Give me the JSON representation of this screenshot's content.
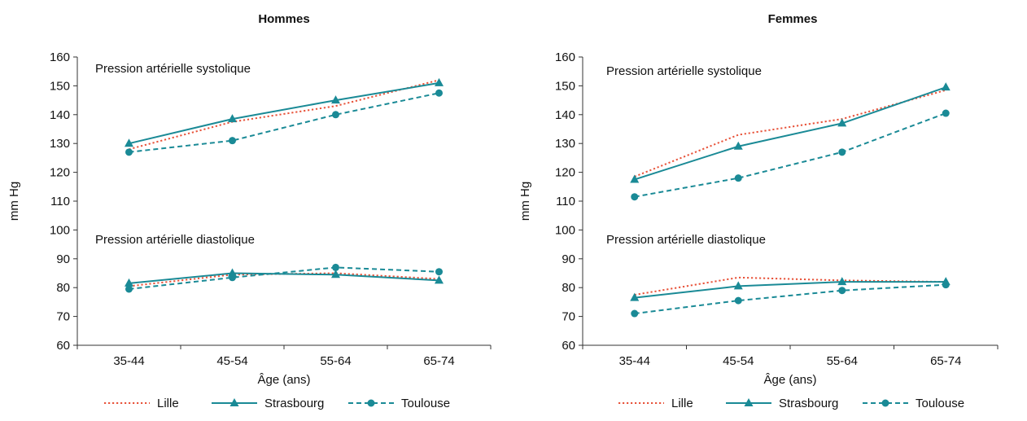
{
  "chart_data": [
    {
      "type": "line",
      "title": "Hommes",
      "xlabel": "Âge (ans)",
      "ylabel": "mm Hg",
      "ylim": [
        60,
        160
      ],
      "yticks": [
        60,
        70,
        80,
        90,
        100,
        110,
        120,
        130,
        140,
        150,
        160
      ],
      "categories": [
        "35-44",
        "45-54",
        "55-64",
        "65-74"
      ],
      "grid": false,
      "annotations": [
        "Pression artérielle systolique",
        "Pression artérielle diastolique"
      ],
      "series": [
        {
          "name": "Lille",
          "group": "systolique",
          "values": [
            128,
            137.5,
            143,
            152
          ]
        },
        {
          "name": "Strasbourg",
          "group": "systolique",
          "values": [
            130,
            138.5,
            145,
            151
          ]
        },
        {
          "name": "Toulouse",
          "group": "systolique",
          "values": [
            127,
            131,
            140,
            147.5
          ]
        },
        {
          "name": "Lille",
          "group": "diastolique",
          "values": [
            80.5,
            84.5,
            85,
            83
          ]
        },
        {
          "name": "Strasbourg",
          "group": "diastolique",
          "values": [
            81.5,
            85,
            84.5,
            82.5
          ]
        },
        {
          "name": "Toulouse",
          "group": "diastolique",
          "values": [
            79.5,
            83.5,
            87,
            85.5
          ]
        }
      ]
    },
    {
      "type": "line",
      "title": "Femmes",
      "xlabel": "Âge (ans)",
      "ylabel": "mm Hg",
      "ylim": [
        60,
        160
      ],
      "yticks": [
        60,
        70,
        80,
        90,
        100,
        110,
        120,
        130,
        140,
        150,
        160
      ],
      "categories": [
        "35-44",
        "45-54",
        "55-64",
        "65-74"
      ],
      "grid": false,
      "annotations": [
        "Pression artérielle systolique",
        "Pression artérielle diastolique"
      ],
      "series": [
        {
          "name": "Lille",
          "group": "systolique",
          "values": [
            118.5,
            133,
            138.5,
            148.5
          ]
        },
        {
          "name": "Strasbourg",
          "group": "systolique",
          "values": [
            117.5,
            129,
            137,
            149.5
          ]
        },
        {
          "name": "Toulouse",
          "group": "systolique",
          "values": [
            111.5,
            118,
            127,
            140.5
          ]
        },
        {
          "name": "Lille",
          "group": "diastolique",
          "values": [
            77.5,
            83.5,
            82.5,
            82
          ]
        },
        {
          "name": "Strasbourg",
          "group": "diastolique",
          "values": [
            76.5,
            80.5,
            82,
            82
          ]
        },
        {
          "name": "Toulouse",
          "group": "diastolique",
          "values": [
            71,
            75.5,
            79,
            81
          ]
        }
      ]
    }
  ],
  "legend": {
    "placement": "bottom",
    "entries": [
      {
        "label": "Lille",
        "color": "#e8533a",
        "style": "dotted",
        "marker": "none"
      },
      {
        "label": "Strasbourg",
        "color": "#1a8a96",
        "style": "solid",
        "marker": "triangle"
      },
      {
        "label": "Toulouse",
        "color": "#1a8a96",
        "style": "dashed",
        "marker": "circle"
      }
    ]
  },
  "colors": {
    "lille": "#e8533a",
    "strasbourg": "#1a8a96",
    "toulouse": "#1a8a96",
    "axis": "#333333"
  }
}
